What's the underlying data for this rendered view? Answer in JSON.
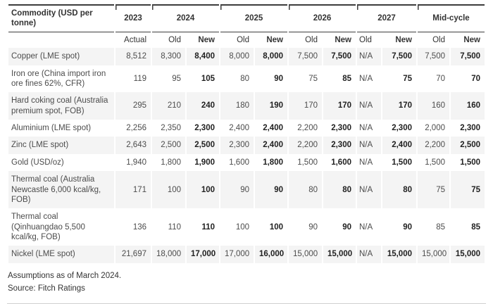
{
  "chart_data": {
    "type": "table",
    "title_cell": "Commodity (USD per tonne)",
    "column_groups": [
      {
        "label": "2023",
        "sub": [
          "Actual"
        ]
      },
      {
        "label": "2024",
        "sub": [
          "Old",
          "New"
        ]
      },
      {
        "label": "2025",
        "sub": [
          "Old",
          "New"
        ]
      },
      {
        "label": "2026",
        "sub": [
          "Old",
          "New"
        ]
      },
      {
        "label": "2027",
        "sub": [
          "Old",
          "New"
        ]
      },
      {
        "label": "Mid-cycle",
        "sub": [
          "Old",
          "New"
        ]
      }
    ],
    "bold_subcolumn": "New",
    "rows": [
      {
        "commodity": "Copper (LME spot)",
        "values": [
          "8,512",
          "8,300",
          "8,400",
          "8,000",
          "8,000",
          "7,500",
          "7,500",
          "N/A",
          "7,500",
          "7,500",
          "7,500"
        ]
      },
      {
        "commodity": "Iron ore (China import iron ore fines 62%, CFR)",
        "values": [
          "119",
          "95",
          "105",
          "80",
          "90",
          "75",
          "85",
          "N/A",
          "75",
          "70",
          "70"
        ]
      },
      {
        "commodity": "Hard coking coal (Australia premium spot, FOB)",
        "values": [
          "295",
          "210",
          "240",
          "180",
          "190",
          "170",
          "170",
          "N/A",
          "170",
          "160",
          "160"
        ]
      },
      {
        "commodity": "Aluminium (LME spot)",
        "values": [
          "2,256",
          "2,350",
          "2,300",
          "2,400",
          "2,400",
          "2,200",
          "2,300",
          "N/A",
          "2,300",
          "2,000",
          "2,300"
        ]
      },
      {
        "commodity": "Zinc (LME spot)",
        "values": [
          "2,643",
          "2,500",
          "2,500",
          "2,300",
          "2,400",
          "2,200",
          "2,300",
          "N/A",
          "2,400",
          "2,200",
          "2,500"
        ]
      },
      {
        "commodity": "Gold (USD/oz)",
        "values": [
          "1,940",
          "1,800",
          "1,900",
          "1,600",
          "1,800",
          "1,500",
          "1,600",
          "N/A",
          "1,500",
          "1,500",
          "1,500"
        ]
      },
      {
        "commodity": "Thermal coal (Australia Newcastle 6,000 kcal/kg, FOB)",
        "values": [
          "171",
          "100",
          "100",
          "90",
          "90",
          "80",
          "80",
          "N/A",
          "80",
          "75",
          "75"
        ]
      },
      {
        "commodity": "Thermal coal (Qinhuangdao 5,500 kcal/kg, FOB)",
        "values": [
          "136",
          "110",
          "110",
          "100",
          "100",
          "90",
          "90",
          "N/A",
          "90",
          "85",
          "85"
        ]
      },
      {
        "commodity": "Nickel (LME spot)",
        "values": [
          "21,697",
          "18,000",
          "17,000",
          "17,000",
          "16,000",
          "15,000",
          "15,000",
          "N/A",
          "15,000",
          "15,000",
          "15,000"
        ]
      }
    ],
    "footnotes": [
      "Assumptions as of March 2024.",
      "Source: Fitch Ratings"
    ]
  },
  "colors": {
    "rule_dark": "#3d3d3d",
    "row_stripe": "#f4f4f4",
    "text": "#4c4c4c",
    "text_bold": "#212121",
    "bottom_rule": "#cfcfcf"
  }
}
